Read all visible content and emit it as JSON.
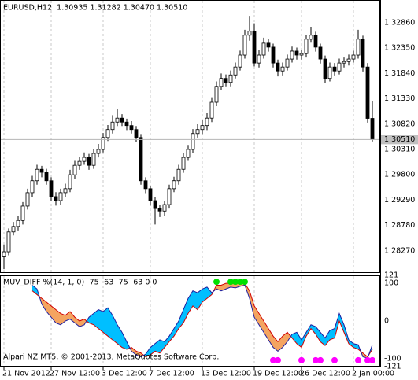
{
  "chart_data": [
    {
      "type": "candlestick",
      "title": "EURUSD,H12  1.30935 1.31282 1.30470 1.30510",
      "categories": [
        "21 Nov 2012",
        null,
        null,
        null,
        null,
        null,
        null,
        null,
        null,
        null,
        "27 Nov 12:00",
        null,
        null,
        null,
        null,
        null,
        null,
        null,
        null,
        null,
        null,
        "3 Dec 12:00",
        null,
        null,
        null,
        null,
        null,
        null,
        null,
        null,
        null,
        "7 Dec 12:00",
        null,
        null,
        null,
        null,
        null,
        null,
        null,
        null,
        null,
        null,
        "13 Dec 12:00",
        null,
        null,
        null,
        null,
        null,
        null,
        null,
        null,
        null,
        null,
        "19 Dec 12:00",
        null,
        null,
        null,
        null,
        null,
        null,
        null,
        null,
        null,
        "26 Dec 12:00",
        null,
        null,
        null,
        null,
        null,
        null,
        null,
        null,
        null,
        null,
        "2 Jan 00:00",
        null,
        null,
        null,
        null
      ],
      "open": [
        1.2815,
        1.2825,
        1.2865,
        1.2876,
        1.2888,
        1.2917,
        1.2944,
        1.2968,
        1.2991,
        1.2985,
        1.2968,
        1.2936,
        1.2928,
        1.2944,
        1.2952,
        1.298,
        1.2999,
        1.3007,
        1.3015,
        1.2999,
        1.3023,
        1.3031,
        1.3055,
        1.3071,
        1.3086,
        1.3094,
        1.3086,
        1.3079,
        1.3071,
        1.3055,
        1.2968,
        1.2952,
        1.2928,
        1.2912,
        1.2907,
        1.292,
        1.2952,
        1.2968,
        1.2991,
        1.3015,
        1.3031,
        1.3063,
        1.3071,
        1.3079,
        1.3094,
        1.3126,
        1.3158,
        1.3174,
        1.3166,
        1.3181,
        1.3197,
        1.3221,
        1.3261,
        1.3269,
        1.3205,
        1.3221,
        1.3245,
        1.3237,
        1.3205,
        1.3189,
        1.3197,
        1.3213,
        1.3229,
        1.3221,
        1.3224,
        1.3253,
        1.3261,
        1.3237,
        1.3213,
        1.3174,
        1.3197,
        1.3189,
        1.3205,
        1.3208,
        1.3213,
        1.3221,
        1.3253,
        1.3197,
        1.30935
      ],
      "high": [
        1.284,
        1.2872,
        1.2885,
        1.2898,
        1.2925,
        1.2952,
        1.2978,
        1.3,
        1.2998,
        1.2992,
        1.2975,
        1.2945,
        1.2952,
        1.2962,
        1.299,
        1.3008,
        1.3016,
        1.3025,
        1.3022,
        1.3032,
        1.3042,
        1.3064,
        1.308,
        1.31,
        1.3113,
        1.3102,
        1.3093,
        1.3088,
        1.3078,
        1.3062,
        1.2975,
        1.2958,
        1.2935,
        1.292,
        1.2928,
        1.296,
        1.2976,
        1.3,
        1.3024,
        1.304,
        1.3072,
        1.3082,
        1.309,
        1.3104,
        1.3136,
        1.3168,
        1.3184,
        1.3182,
        1.319,
        1.3206,
        1.323,
        1.3272,
        1.33,
        1.3285,
        1.3232,
        1.3256,
        1.3254,
        1.3244,
        1.3212,
        1.3206,
        1.3222,
        1.3238,
        1.3236,
        1.3232,
        1.3262,
        1.3278,
        1.3268,
        1.3244,
        1.322,
        1.3206,
        1.3205,
        1.3214,
        1.3216,
        1.3222,
        1.323,
        1.3272,
        1.326,
        1.3205,
        1.31282
      ],
      "low": [
        1.279,
        1.2818,
        1.2858,
        1.2868,
        1.288,
        1.291,
        1.2936,
        1.296,
        1.2975,
        1.296,
        1.2928,
        1.2918,
        1.292,
        1.2935,
        1.2945,
        1.2972,
        1.299,
        1.3,
        1.299,
        1.2992,
        1.3015,
        1.3025,
        1.3048,
        1.3063,
        1.3078,
        1.3078,
        1.307,
        1.3063,
        1.3046,
        1.296,
        1.2943,
        1.2918,
        1.288,
        1.2895,
        1.2898,
        1.2912,
        1.2945,
        1.296,
        1.2984,
        1.3008,
        1.3024,
        1.3055,
        1.3062,
        1.307,
        1.3086,
        1.3118,
        1.315,
        1.3158,
        1.3158,
        1.3174,
        1.319,
        1.3214,
        1.325,
        1.3198,
        1.3196,
        1.3214,
        1.3228,
        1.3196,
        1.3178,
        1.318,
        1.319,
        1.3206,
        1.3212,
        1.3212,
        1.3216,
        1.3246,
        1.3228,
        1.3204,
        1.3165,
        1.3168,
        1.318,
        1.3182,
        1.3196,
        1.32,
        1.3206,
        1.3214,
        1.3188,
        1.3085,
        1.3047
      ],
      "close": [
        1.2825,
        1.2865,
        1.2876,
        1.2888,
        1.2917,
        1.2944,
        1.2968,
        1.2991,
        1.2985,
        1.2968,
        1.2936,
        1.2928,
        1.2944,
        1.2952,
        1.298,
        1.2999,
        1.3007,
        1.3015,
        1.2999,
        1.3023,
        1.3031,
        1.3055,
        1.3071,
        1.3086,
        1.3094,
        1.3086,
        1.3079,
        1.3071,
        1.3055,
        1.2968,
        1.2952,
        1.2928,
        1.2912,
        1.2907,
        1.292,
        1.2952,
        1.2968,
        1.2991,
        1.3015,
        1.3031,
        1.3063,
        1.3071,
        1.3079,
        1.3094,
        1.3126,
        1.3158,
        1.3174,
        1.3166,
        1.3181,
        1.3197,
        1.3221,
        1.3261,
        1.3269,
        1.3205,
        1.3221,
        1.3245,
        1.3237,
        1.3205,
        1.3189,
        1.3197,
        1.3213,
        1.3229,
        1.3221,
        1.3224,
        1.3253,
        1.3261,
        1.3237,
        1.3213,
        1.3174,
        1.3197,
        1.3189,
        1.3205,
        1.3208,
        1.3213,
        1.3221,
        1.3253,
        1.3197,
        1.30935,
        1.3051
      ],
      "up_color": "#ffffff",
      "down_color": "#000000",
      "outline_color": "#000000",
      "ylim": [
        1.27823,
        1.33319
      ],
      "yticks": [
        {
          "value": 1.3286,
          "label": "1.32860"
        },
        {
          "value": 1.3235,
          "label": "1.32350"
        },
        {
          "value": 1.3184,
          "label": "1.31840"
        },
        {
          "value": 1.3133,
          "label": "1.31330"
        },
        {
          "value": 1.3082,
          "label": "1.30820"
        },
        {
          "value": 1.3031,
          "label": "1.30310"
        },
        {
          "value": 1.298,
          "label": "1.29800"
        },
        {
          "value": 1.2929,
          "label": "1.29290"
        },
        {
          "value": 1.2878,
          "label": "1.28780"
        },
        {
          "value": 1.2827,
          "label": "1.28270"
        }
      ],
      "current_price": {
        "value": 1.3051,
        "label": "1.30510"
      },
      "grid": true
    },
    {
      "type": "band",
      "title": "MUV_DIFF %(14, 1, 0) -75 -63 -75 -63 0 0",
      "series": [
        {
          "color": "#d00000",
          "values": [
            null,
            null,
            null,
            null,
            null,
            null,
            80,
            70,
            60,
            50,
            40,
            30,
            20,
            15,
            25,
            10,
            0,
            5,
            -5,
            -10,
            -20,
            -30,
            -40,
            -50,
            -60,
            -70,
            -75,
            -70,
            -80,
            -85,
            -95,
            -90,
            -80,
            -85,
            -70,
            -55,
            -40,
            -20,
            -5,
            20,
            40,
            30,
            50,
            60,
            70,
            95,
            95,
            100,
            100,
            100,
            100,
            100,
            80,
            40,
            20,
            0,
            -20,
            -40,
            -55,
            -40,
            -30,
            -45,
            -60,
            -70,
            -40,
            -20,
            -35,
            -55,
            -65,
            -50,
            -45,
            0,
            -30,
            -60,
            -70,
            -75,
            -85,
            -95,
            -75
          ]
        },
        {
          "color": "#1e1e9e",
          "values": [
            null,
            null,
            null,
            null,
            null,
            null,
            95,
            85,
            45,
            25,
            10,
            -5,
            -10,
            0,
            5,
            -5,
            -15,
            -10,
            10,
            20,
            30,
            25,
            35,
            15,
            -10,
            -30,
            -55,
            -80,
            -90,
            -95,
            -88,
            -70,
            -60,
            -50,
            -55,
            -40,
            -20,
            0,
            30,
            60,
            80,
            75,
            85,
            90,
            75,
            85,
            80,
            85,
            90,
            88,
            92,
            95,
            60,
            10,
            -10,
            -30,
            -50,
            -70,
            -80,
            -70,
            -55,
            -35,
            -30,
            -50,
            -30,
            -10,
            -15,
            -30,
            -45,
            -25,
            -20,
            20,
            -10,
            -50,
            -60,
            -63,
            -95,
            -98,
            -63
          ]
        }
      ],
      "fill_colors": [
        "#f4a460",
        "#00bfff"
      ],
      "markers": [
        {
          "color": "#00e000",
          "values": [
            null,
            null,
            null,
            null,
            null,
            null,
            null,
            null,
            null,
            null,
            null,
            null,
            null,
            null,
            null,
            null,
            null,
            null,
            null,
            null,
            null,
            null,
            null,
            null,
            null,
            null,
            null,
            null,
            null,
            null,
            null,
            null,
            null,
            null,
            null,
            null,
            null,
            null,
            null,
            null,
            null,
            null,
            null,
            null,
            null,
            104,
            null,
            null,
            104,
            104,
            104,
            104,
            null,
            null,
            null,
            null,
            null,
            null,
            null,
            null,
            null,
            null,
            null,
            null,
            null,
            null,
            null,
            null,
            null,
            null,
            null,
            null,
            null,
            null,
            null,
            null,
            null,
            null,
            null
          ]
        },
        {
          "color": "#ff00ff",
          "values": [
            null,
            null,
            null,
            null,
            null,
            null,
            null,
            null,
            null,
            null,
            null,
            null,
            null,
            null,
            null,
            null,
            null,
            null,
            null,
            null,
            null,
            null,
            null,
            null,
            null,
            null,
            null,
            null,
            null,
            null,
            null,
            null,
            null,
            null,
            null,
            null,
            null,
            null,
            null,
            null,
            null,
            null,
            null,
            null,
            null,
            null,
            null,
            null,
            null,
            null,
            null,
            null,
            null,
            null,
            null,
            null,
            null,
            -104,
            -104,
            null,
            null,
            null,
            null,
            -104,
            null,
            null,
            -104,
            -104,
            null,
            null,
            -104,
            null,
            null,
            null,
            null,
            -104,
            null,
            -104,
            -104
          ]
        }
      ],
      "ylim": [
        -121,
        121
      ],
      "yticks": [
        121,
        100,
        0,
        -100,
        -121
      ],
      "grid": true
    }
  ],
  "footer": "Alpari NZ MT5, © 2001-2013, MetaQuotes Software Corp."
}
